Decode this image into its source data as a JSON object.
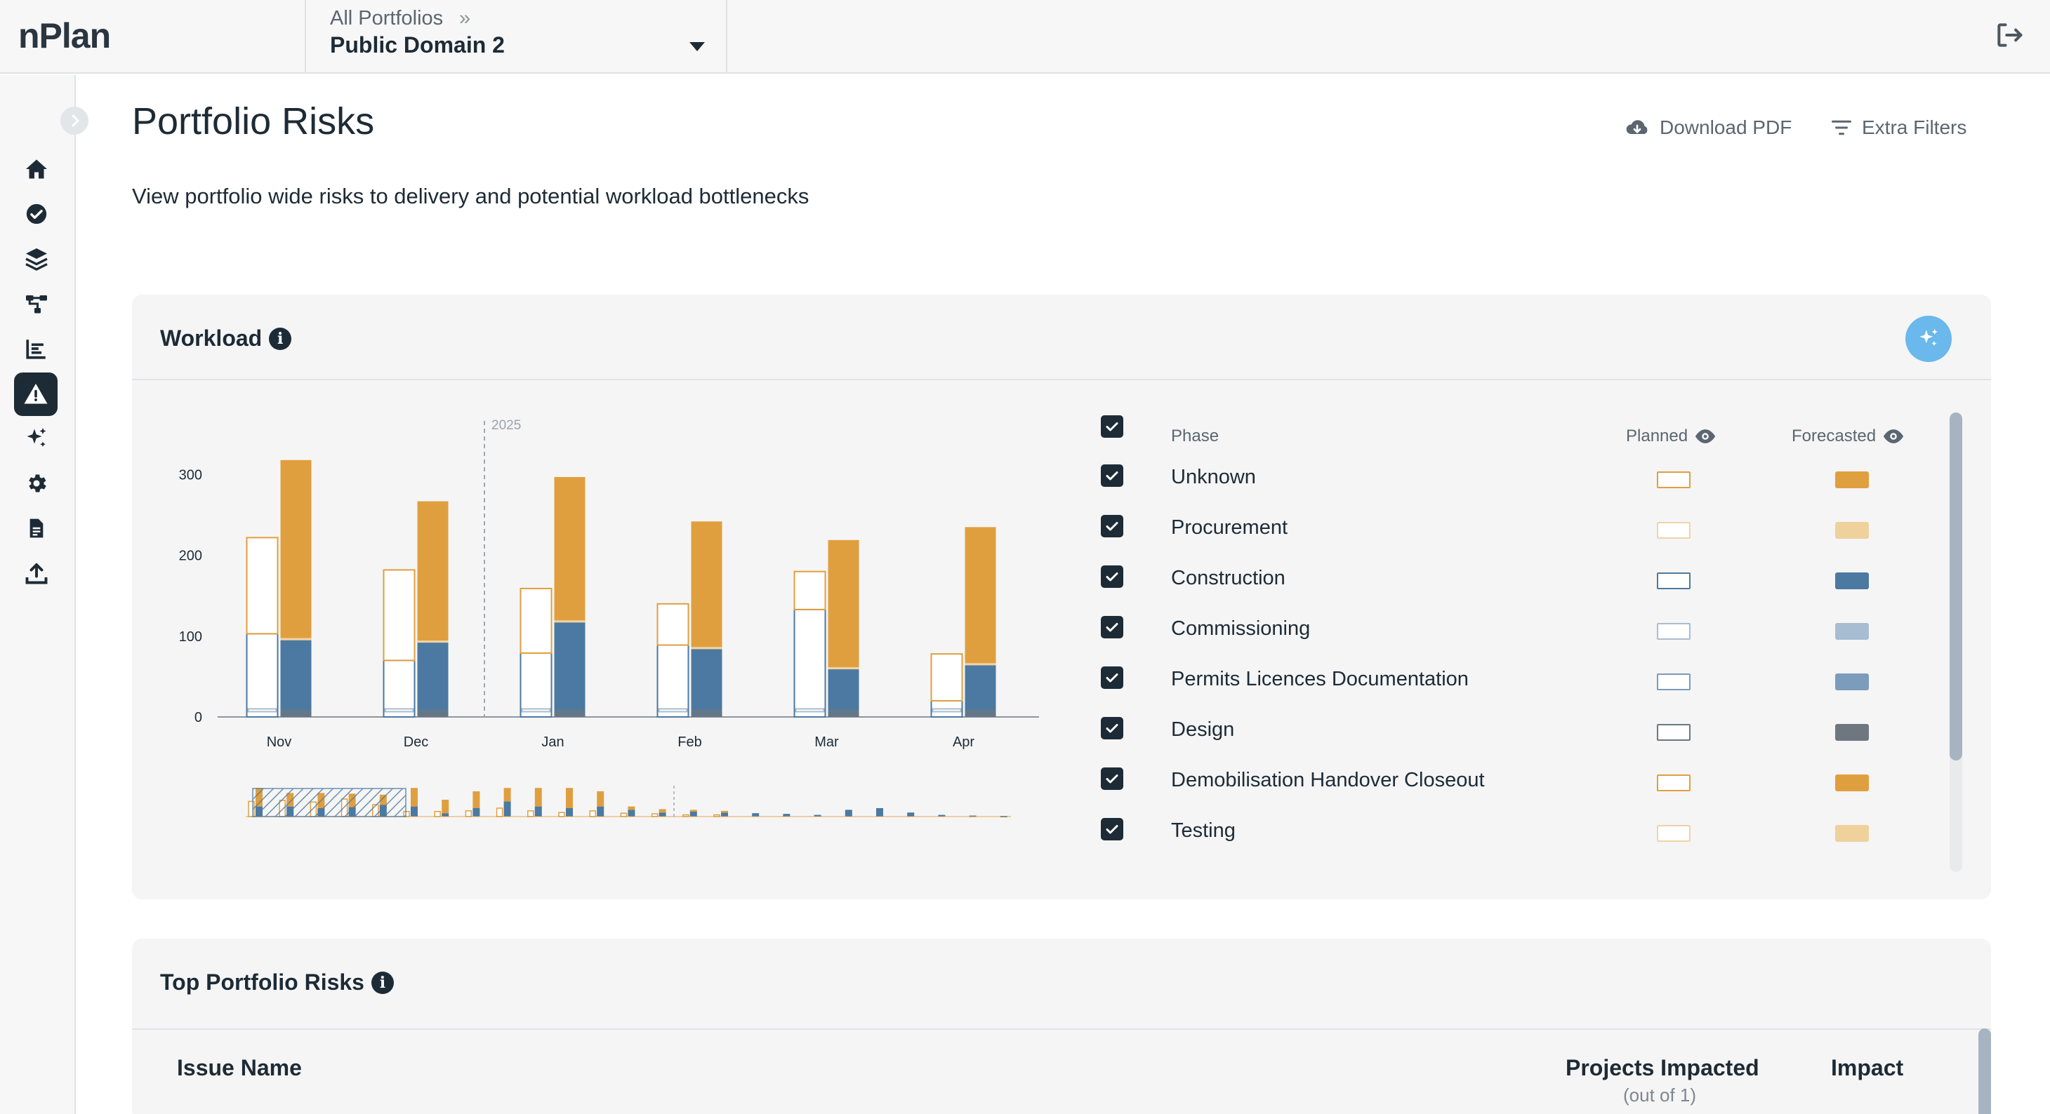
{
  "app": {
    "logo": "nPlan"
  },
  "breadcrumb": {
    "parent": "All Portfolios",
    "separator": "»",
    "current": "Public Domain 2"
  },
  "page": {
    "title": "Portfolio Risks",
    "subtitle": "View portfolio wide risks to delivery and potential workload bottlenecks",
    "download_label": "Download PDF",
    "filters_label": "Extra Filters"
  },
  "sidebar": {
    "items": [
      {
        "icon": "home-icon"
      },
      {
        "icon": "check-circle-icon"
      },
      {
        "icon": "layers-icon"
      },
      {
        "icon": "hierarchy-icon"
      },
      {
        "icon": "bar-chart-icon"
      },
      {
        "icon": "warning-icon",
        "active": true
      },
      {
        "icon": "sparkles-icon"
      },
      {
        "icon": "gear-icon"
      },
      {
        "icon": "document-icon"
      },
      {
        "icon": "upload-icon"
      }
    ]
  },
  "workload": {
    "title": "Workload",
    "legend": {
      "phase_header": "Phase",
      "planned_header": "Planned",
      "forecasted_header": "Forecasted",
      "phases": [
        {
          "name": "Unknown",
          "planned_color": "#e09f3e",
          "forecast_color": "#e09f3e"
        },
        {
          "name": "Procurement",
          "planned_color": "#f1d3a4",
          "forecast_color": "#efd19c"
        },
        {
          "name": "Construction",
          "planned_color": "#4b79a1",
          "forecast_color": "#4b79a1"
        },
        {
          "name": "Commissioning",
          "planned_color": "#a9bdd0",
          "forecast_color": "#a7bdd2"
        },
        {
          "name": "Permits Licences Documentation",
          "planned_color": "#7b9cbb",
          "forecast_color": "#7b9cbb"
        },
        {
          "name": "Design",
          "planned_color": "#6b7780",
          "forecast_color": "#6e7780"
        },
        {
          "name": "Demobilisation Handover Closeout",
          "planned_color": "#e09f3e",
          "forecast_color": "#e09f3e"
        },
        {
          "name": "Testing",
          "planned_color": "#f1d3a4",
          "forecast_color": "#efd19c"
        }
      ]
    }
  },
  "chart_data": {
    "type": "bar",
    "categories": [
      "Nov",
      "Dec",
      "Jan",
      "Feb",
      "Mar",
      "Apr"
    ],
    "year_marker": "2025",
    "year_marker_between": [
      "Dec",
      "Jan"
    ],
    "y_ticks": [
      "0",
      "100",
      "200",
      "300"
    ],
    "ylim": [
      0,
      330
    ],
    "planned": [
      {
        "category": "Nov",
        "total": 222,
        "blue": 103,
        "orange": 119
      },
      {
        "category": "Dec",
        "total": 182,
        "blue": 70,
        "orange": 112
      },
      {
        "category": "Jan",
        "total": 159,
        "blue": 79,
        "orange": 80
      },
      {
        "category": "Feb",
        "total": 140,
        "blue": 89,
        "orange": 51
      },
      {
        "category": "Mar",
        "total": 180,
        "blue": 133,
        "orange": 47
      },
      {
        "category": "Apr",
        "total": 78,
        "blue": 20,
        "orange": 58
      }
    ],
    "forecasted": [
      {
        "category": "Nov",
        "total": 318,
        "blue": 95,
        "orange": 223
      },
      {
        "category": "Dec",
        "total": 267,
        "blue": 92,
        "orange": 175
      },
      {
        "category": "Jan",
        "total": 297,
        "blue": 117,
        "orange": 180
      },
      {
        "category": "Feb",
        "total": 242,
        "blue": 84,
        "orange": 158
      },
      {
        "category": "Mar",
        "total": 219,
        "blue": 59,
        "orange": 160
      },
      {
        "category": "Apr",
        "total": 235,
        "blue": 64,
        "orange": 171
      }
    ]
  },
  "minimap": {
    "bars": [
      [
        0.25,
        0.2,
        0.55,
        0.3
      ],
      [
        0.2,
        0.28,
        0.4,
        0.3
      ],
      [
        0.18,
        0.25,
        0.45,
        0.25
      ],
      [
        0.22,
        0.3,
        0.4,
        0.28
      ],
      [
        0.1,
        0.25,
        0.3,
        0.35
      ],
      [
        0.05,
        0.1,
        0.55,
        0.3
      ],
      [
        0.05,
        0.1,
        0.4,
        0.1
      ],
      [
        0.05,
        0.12,
        0.5,
        0.25
      ],
      [
        0.05,
        0.2,
        0.4,
        0.45
      ],
      [
        0.02,
        0.15,
        0.55,
        0.3
      ],
      [
        0.02,
        0.1,
        0.6,
        0.25
      ],
      [
        0.02,
        0.15,
        0.45,
        0.3
      ],
      [
        0.0,
        0.1,
        0.1,
        0.2
      ],
      [
        0.0,
        0.08,
        0.1,
        0.12
      ],
      [
        0.0,
        0.05,
        0.05,
        0.15
      ],
      [
        0.0,
        0.05,
        0.05,
        0.12
      ],
      [
        0.0,
        0.0,
        0.0,
        0.1
      ],
      [
        0.0,
        0.0,
        0.0,
        0.08
      ],
      [
        0.0,
        0.0,
        0.0,
        0.05
      ],
      [
        0.0,
        0.0,
        0.0,
        0.2
      ],
      [
        0.0,
        0.0,
        0.0,
        0.25
      ],
      [
        0.0,
        0.0,
        0.0,
        0.12
      ],
      [
        0.0,
        0.0,
        0.0,
        0.05
      ],
      [
        0.0,
        0.0,
        0.0,
        0.03
      ],
      [
        0.0,
        0.0,
        0.0,
        0.02
      ]
    ]
  },
  "risks": {
    "title": "Top Portfolio Risks",
    "col_issue": "Issue Name",
    "col_projects": "Projects Impacted",
    "col_projects_sub": "(out of 1)",
    "col_impact": "Impact"
  }
}
